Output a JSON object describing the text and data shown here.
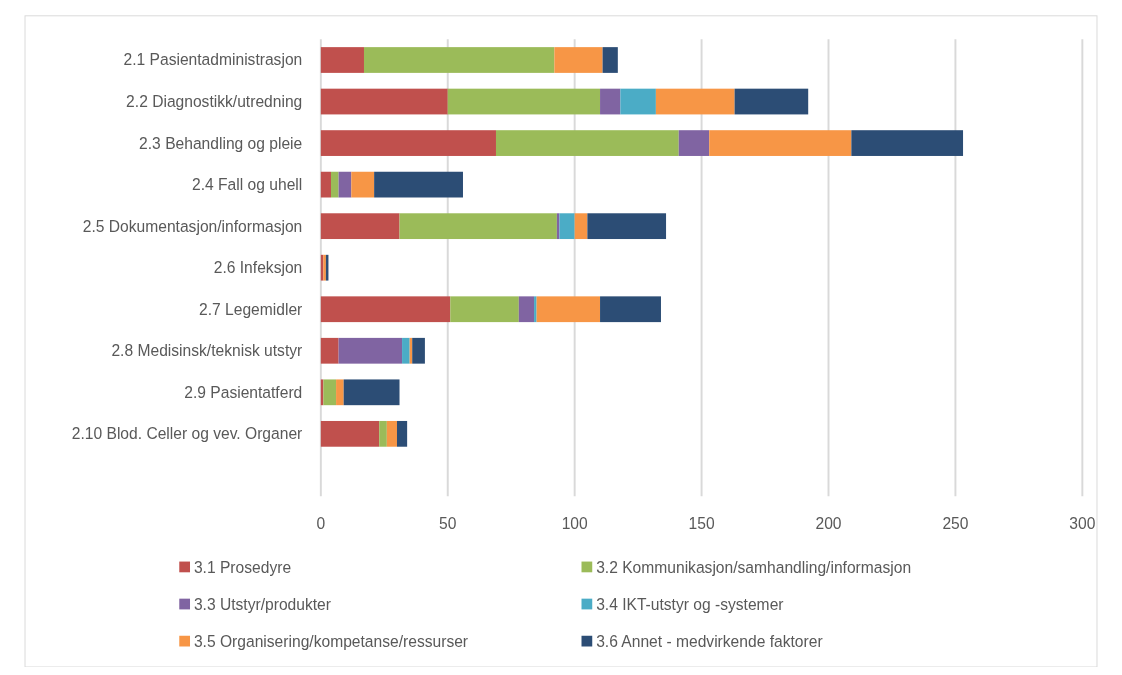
{
  "chart_data": {
    "type": "bar",
    "orientation": "horizontal",
    "stacked": true,
    "categories": [
      "2.1 Pasientadministrasjon",
      "2.2 Diagnostikk/utredning",
      "2.3 Behandling og pleie",
      "2.4 Fall og uhell",
      "2.5 Dokumentasjon/informasjon",
      "2.6 Infeksjon",
      "2.7 Legemidler",
      "2.8 Medisinsk/teknisk utstyr",
      "2.9 Pasientatferd",
      "2.10 Blod. Celler og vev. Organer",
      null
    ],
    "series": [
      {
        "name": "3.1 Prosedyre",
        "color": "#c0504d",
        "values": [
          17,
          50,
          69,
          4,
          31,
          1,
          51,
          7,
          1,
          23,
          null
        ]
      },
      {
        "name": "3.2 Kommunikasjon/samhandling/informasjon",
        "color": "#9bbb59",
        "values": [
          75,
          60,
          72,
          3,
          62,
          0,
          27,
          0,
          5,
          3,
          null
        ]
      },
      {
        "name": "3.3 Utstyr/produkter",
        "color": "#8064a2",
        "values": [
          0,
          8,
          12,
          5,
          1,
          0,
          6,
          25,
          0,
          0,
          null
        ]
      },
      {
        "name": "3.4 IKT-utstyr og -systemer",
        "color": "#4bacc6",
        "values": [
          0,
          14,
          0,
          0,
          6,
          0,
          1,
          3,
          0,
          0,
          null
        ]
      },
      {
        "name": "3.5 Organisering/kompetanse/ressurser",
        "color": "#f79646",
        "values": [
          19,
          31,
          56,
          9,
          5,
          1,
          25,
          1,
          3,
          4,
          null
        ]
      },
      {
        "name": "3.6 Annet - medvirkende faktorer",
        "color": "#2c4d75",
        "values": [
          6,
          29,
          44,
          35,
          31,
          1,
          24,
          5,
          22,
          4,
          null
        ]
      }
    ],
    "xlim": [
      0,
      300
    ],
    "xticks": [
      0,
      50,
      100,
      150,
      200,
      250,
      300
    ],
    "grid": "x",
    "legend": "bottom"
  }
}
